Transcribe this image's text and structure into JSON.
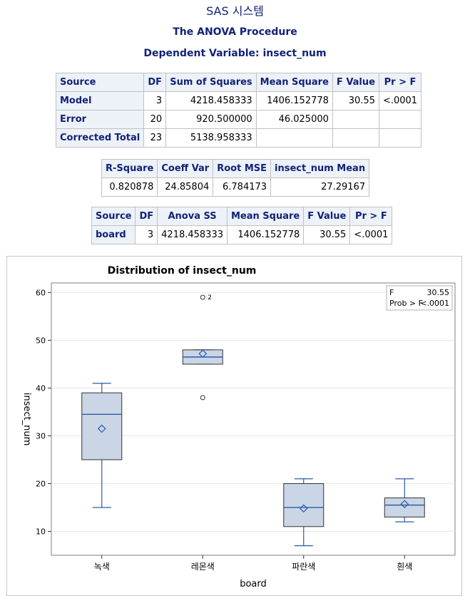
{
  "header": {
    "system_title": "SAS 시스템",
    "procedure_title": "The ANOVA Procedure",
    "dependent_variable": "Dependent Variable: insect_num"
  },
  "anova_table": {
    "headers": [
      "Source",
      "DF",
      "Sum of Squares",
      "Mean Square",
      "F Value",
      "Pr > F"
    ],
    "rows": [
      [
        "Model",
        "3",
        "4218.458333",
        "1406.152778",
        "30.55",
        "<.0001"
      ],
      [
        "Error",
        "20",
        "920.500000",
        "46.025000",
        "",
        ""
      ],
      [
        "Corrected Total",
        "23",
        "5138.958333",
        "",
        "",
        ""
      ]
    ]
  },
  "fit_table": {
    "headers": [
      "R-Square",
      "Coeff Var",
      "Root MSE",
      "insect_num Mean"
    ],
    "rows": [
      [
        "0.820878",
        "24.85804",
        "6.784173",
        "27.29167"
      ]
    ]
  },
  "type3_table": {
    "headers": [
      "Source",
      "DF",
      "Anova SS",
      "Mean Square",
      "F Value",
      "Pr > F"
    ],
    "rows": [
      [
        "board",
        "3",
        "4218.458333",
        "1406.152778",
        "30.55",
        "<.0001"
      ]
    ]
  },
  "chart_data": {
    "type": "box",
    "title": "Distribution of insect_num",
    "xlabel": "board",
    "ylabel": "insect_num",
    "ylim": [
      5,
      62
    ],
    "yticks": [
      10,
      20,
      30,
      40,
      50,
      60
    ],
    "grid": true,
    "categories": [
      "녹색",
      "레몬색",
      "파란색",
      "흰색"
    ],
    "boxes": [
      {
        "category": "녹색",
        "min": 15,
        "q1": 25,
        "median": 34.5,
        "q3": 39,
        "max": 41,
        "mean": 31.5,
        "outliers": []
      },
      {
        "category": "레몬색",
        "min": 45,
        "q1": 45,
        "median": 46.5,
        "q3": 48,
        "max": 48,
        "mean": 47.2,
        "outliers": [
          {
            "value": 59,
            "label": "2"
          },
          {
            "value": 38,
            "label": ""
          }
        ]
      },
      {
        "category": "파란색",
        "min": 7,
        "q1": 11,
        "median": 15,
        "q3": 20,
        "max": 21,
        "mean": 14.8,
        "outliers": []
      },
      {
        "category": "흰색",
        "min": 12,
        "q1": 13,
        "median": 15.5,
        "q3": 17,
        "max": 21,
        "mean": 15.7,
        "outliers": []
      }
    ],
    "inset": {
      "rows": [
        [
          "F",
          "30.55"
        ],
        [
          "Prob > F",
          "<.0001"
        ]
      ],
      "placement": "top-right"
    },
    "colors": {
      "box_fill": "#cad5e5",
      "line": "#2a5caa",
      "text": "#000000"
    }
  }
}
